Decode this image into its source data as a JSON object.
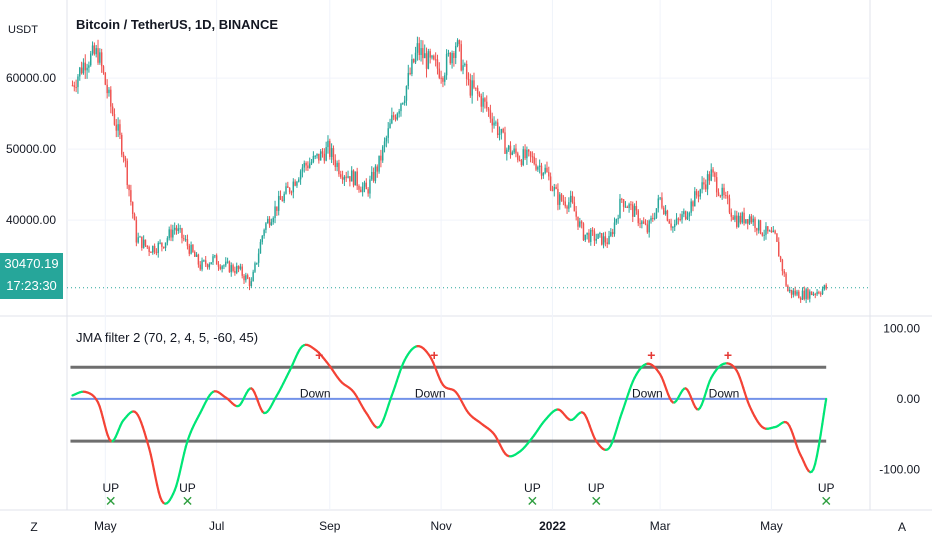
{
  "header": {
    "unit": "USDT",
    "symbol_title": "Bitcoin / TetherUS, 1D, BINANCE"
  },
  "price_tag": {
    "price": "30470.19",
    "countdown": "17:23:30"
  },
  "indicator": {
    "title": "JMA filter 2 (70, 2, 4, 5, -60, 45)"
  },
  "bottom_bar": {
    "left_button": "Z",
    "right_button": "A"
  },
  "colors": {
    "up_candle": "#26a69a",
    "down_candle": "#ef5350",
    "jma_up": "#00e676",
    "jma_down": "#f44336",
    "level_line": "#555555",
    "zero_line": "#5b7fe6",
    "marker_x": "#2e9e3f",
    "marker_plus": "#e53935"
  },
  "chart_data": [
    {
      "type": "candlestick",
      "title": "Bitcoin / TetherUS, 1D, BINANCE",
      "ylabel": "USDT",
      "ylim": [
        26500,
        71000
      ],
      "yticks": [
        "60000.00",
        "50000.00",
        "40000.00"
      ],
      "xticks": [
        "May",
        "Jul",
        "Sep",
        "Nov",
        "2022",
        "Mar",
        "May"
      ],
      "last_price": 30470.19,
      "series": [
        {
          "name": "BTCUSDT",
          "x": [
            "2021-04-13",
            "2021-04-20",
            "2021-04-27",
            "2021-05-04",
            "2021-05-11",
            "2021-05-18",
            "2021-05-25",
            "2021-06-01",
            "2021-06-08",
            "2021-06-15",
            "2021-06-22",
            "2021-06-29",
            "2021-07-06",
            "2021-07-13",
            "2021-07-20",
            "2021-07-27",
            "2021-08-03",
            "2021-08-10",
            "2021-08-17",
            "2021-08-24",
            "2021-08-31",
            "2021-09-07",
            "2021-09-14",
            "2021-09-21",
            "2021-09-28",
            "2021-10-05",
            "2021-10-12",
            "2021-10-19",
            "2021-10-26",
            "2021-11-02",
            "2021-11-09",
            "2021-11-16",
            "2021-11-23",
            "2021-11-30",
            "2021-12-07",
            "2021-12-14",
            "2021-12-21",
            "2021-12-28",
            "2022-01-04",
            "2022-01-11",
            "2022-01-18",
            "2022-01-25",
            "2022-02-01",
            "2022-02-08",
            "2022-02-15",
            "2022-02-22",
            "2022-03-01",
            "2022-03-08",
            "2022-03-15",
            "2022-03-22",
            "2022-03-29",
            "2022-04-05",
            "2022-04-12",
            "2022-04-19",
            "2022-04-26",
            "2022-05-03",
            "2022-05-10",
            "2022-05-17",
            "2022-05-24",
            "2022-05-31"
          ],
          "close": [
            59000,
            62500,
            63500,
            56000,
            49500,
            37500,
            36000,
            36500,
            39000,
            36500,
            33500,
            34500,
            33500,
            33000,
            31000,
            39000,
            42000,
            44500,
            47500,
            48500,
            50000,
            47000,
            46000,
            44000,
            48000,
            54000,
            58000,
            64000,
            62000,
            61000,
            65000,
            59000,
            57000,
            54000,
            50000,
            49000,
            48500,
            47000,
            43000,
            42500,
            38000,
            37500,
            37000,
            43000,
            41000,
            38500,
            43000,
            39000,
            41000,
            44000,
            46500,
            43000,
            40000,
            40500,
            38500,
            37500,
            30000,
            29500,
            29800,
            30470
          ]
        }
      ]
    },
    {
      "type": "line",
      "title": "JMA filter 2 (70, 2, 4, 5, -60, 45)",
      "ylim": [
        -155,
        115
      ],
      "yticks": [
        "100.00",
        "0.00",
        "-100.00"
      ],
      "levels": [
        45,
        0,
        -60
      ],
      "series": [
        {
          "name": "JMA filter 2",
          "x": [
            "2021-04-13",
            "2021-04-20",
            "2021-04-27",
            "2021-05-04",
            "2021-05-11",
            "2021-05-18",
            "2021-05-25",
            "2021-06-01",
            "2021-06-08",
            "2021-06-15",
            "2021-06-22",
            "2021-06-29",
            "2021-07-06",
            "2021-07-13",
            "2021-07-20",
            "2021-07-27",
            "2021-08-03",
            "2021-08-10",
            "2021-08-17",
            "2021-08-24",
            "2021-08-31",
            "2021-09-07",
            "2021-09-14",
            "2021-09-21",
            "2021-09-28",
            "2021-10-05",
            "2021-10-12",
            "2021-10-19",
            "2021-10-26",
            "2021-11-02",
            "2021-11-09",
            "2021-11-16",
            "2021-11-23",
            "2021-11-30",
            "2021-12-07",
            "2021-12-14",
            "2021-12-21",
            "2021-12-28",
            "2022-01-04",
            "2022-01-11",
            "2022-01-18",
            "2022-01-25",
            "2022-02-01",
            "2022-02-08",
            "2022-02-15",
            "2022-02-22",
            "2022-03-01",
            "2022-03-08",
            "2022-03-15",
            "2022-03-22",
            "2022-03-29",
            "2022-04-05",
            "2022-04-12",
            "2022-04-19",
            "2022-04-26",
            "2022-05-03",
            "2022-05-10",
            "2022-05-17",
            "2022-05-24",
            "2022-05-31"
          ],
          "values": [
            5,
            10,
            -5,
            -60,
            -30,
            -20,
            -70,
            -145,
            -130,
            -60,
            -20,
            10,
            2,
            -10,
            15,
            -20,
            5,
            40,
            75,
            70,
            50,
            25,
            10,
            -20,
            -40,
            5,
            55,
            75,
            60,
            20,
            10,
            -20,
            -35,
            -50,
            -80,
            -75,
            -55,
            -30,
            -15,
            -30,
            -20,
            -60,
            -70,
            -20,
            30,
            50,
            35,
            -5,
            15,
            -15,
            30,
            50,
            40,
            -10,
            -40,
            -40,
            -35,
            -80,
            -100,
            0
          ]
        }
      ],
      "annotations": [
        {
          "label": "UP",
          "marker": "x",
          "x": "2021-05-04"
        },
        {
          "label": "UP",
          "marker": "x",
          "x": "2021-06-15"
        },
        {
          "label": "Down",
          "marker": "+",
          "x": "2021-08-24"
        },
        {
          "label": "Down",
          "marker": "+",
          "x": "2021-10-26"
        },
        {
          "label": "UP",
          "marker": "x",
          "x": "2021-12-21"
        },
        {
          "label": "UP",
          "marker": "x",
          "x": "2022-01-25"
        },
        {
          "label": "Down",
          "marker": "+",
          "x": "2022-02-22"
        },
        {
          "label": "Down",
          "marker": "+",
          "x": "2022-04-05"
        },
        {
          "label": "UP",
          "marker": "x",
          "x": "2022-05-31"
        }
      ]
    }
  ]
}
